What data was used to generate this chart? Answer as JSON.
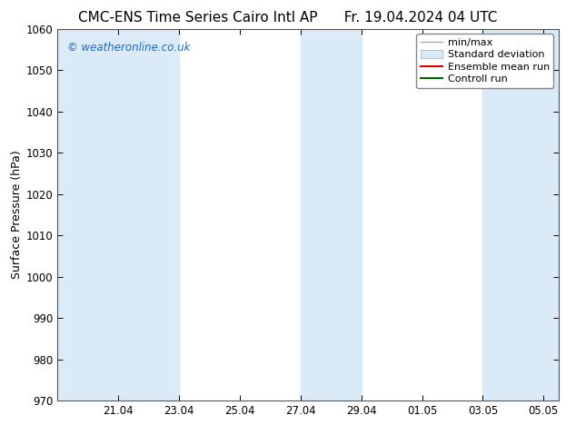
{
  "title_left": "CMC-ENS Time Series Cairo Intl AP",
  "title_right": "Fr. 19.04.2024 04 UTC",
  "ylabel": "Surface Pressure (hPa)",
  "ylim": [
    970,
    1060
  ],
  "yticks": [
    970,
    980,
    990,
    1000,
    1010,
    1020,
    1030,
    1040,
    1050,
    1060
  ],
  "x_labels": [
    "21.04",
    "23.04",
    "25.04",
    "27.04",
    "29.04",
    "01.05",
    "03.05",
    "05.05"
  ],
  "background_color": "#ffffff",
  "plot_bg_color": "#ffffff",
  "shaded_color": "#daeaf7",
  "watermark_text": "© weatheronline.co.uk",
  "watermark_color": "#1a6ac8",
  "title_fontsize": 11,
  "axis_label_fontsize": 9,
  "tick_fontsize": 8.5,
  "legend_fontsize": 8
}
